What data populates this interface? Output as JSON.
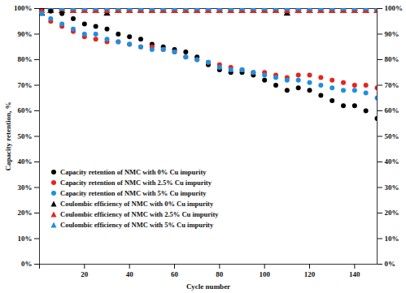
{
  "chart_data": {
    "type": "scatter",
    "x_label": "Cycle number",
    "y_label": "Capacity retention, %",
    "xlim": [
      0,
      150
    ],
    "xticks": [
      0,
      20,
      40,
      60,
      80,
      100,
      120,
      140
    ],
    "ylim": [
      0,
      100
    ],
    "yticks": [
      {
        "value": 0,
        "label": "0%"
      },
      {
        "value": 10,
        "label": "10%"
      },
      {
        "value": 20,
        "label": "20%"
      },
      {
        "value": 30,
        "label": "30%"
      },
      {
        "value": 40,
        "label": "40%"
      },
      {
        "value": 50,
        "label": "50%"
      },
      {
        "value": 60,
        "label": "60%"
      },
      {
        "value": 70,
        "label": "70%"
      },
      {
        "value": 80,
        "label": "80%"
      },
      {
        "value": 90,
        "label": "90%"
      },
      {
        "value": 100,
        "label": "100%"
      }
    ],
    "y2lim": [
      0,
      100
    ],
    "y2ticks": [
      {
        "value": 0,
        "label": "0%"
      },
      {
        "value": 10,
        "label": "10%"
      },
      {
        "value": 20,
        "label": "20%"
      },
      {
        "value": 30,
        "label": "30%"
      },
      {
        "value": 40,
        "label": "40%"
      },
      {
        "value": 50,
        "label": "50%"
      },
      {
        "value": 60,
        "label": "60%"
      },
      {
        "value": 70,
        "label": "70%"
      },
      {
        "value": 80,
        "label": "80%"
      },
      {
        "value": 90,
        "label": "90%"
      },
      {
        "value": 100,
        "label": "100%"
      }
    ],
    "grid": false,
    "legend": "lower left",
    "x": [
      1,
      5,
      10,
      15,
      20,
      25,
      30,
      35,
      40,
      45,
      50,
      55,
      60,
      65,
      70,
      75,
      80,
      85,
      90,
      95,
      100,
      105,
      110,
      115,
      120,
      125,
      130,
      135,
      140,
      145,
      150
    ],
    "series": [
      {
        "name": "Capacity retention of NMC with 0% Cu impurity",
        "color": "#000000",
        "marker": "circle",
        "values": [
          100,
          99,
          98,
          96,
          94,
          93,
          92,
          90,
          89,
          88,
          86,
          85,
          84,
          83,
          81,
          78,
          76,
          75,
          75,
          74,
          72,
          70,
          68,
          69,
          68,
          66,
          64,
          62,
          62,
          60,
          57
        ]
      },
      {
        "name": "Capacity retention of NMC with 2.5% Cu impurity",
        "color": "#e8231b",
        "marker": "circle",
        "values": [
          99,
          95,
          93,
          91,
          89,
          88,
          87,
          87,
          86,
          85,
          85,
          84,
          83,
          81,
          80,
          79,
          78,
          77,
          76,
          75,
          75,
          74,
          73,
          74,
          74,
          73,
          72,
          71,
          70,
          70,
          69
        ]
      },
      {
        "name": "Capacity retention of NMC with 5% Cu impurity",
        "color": "#1f8fe0",
        "marker": "circle",
        "values": [
          98,
          96,
          94,
          92,
          90,
          90,
          88,
          87,
          86,
          85,
          84,
          84,
          83,
          81,
          80,
          79,
          77,
          76,
          76,
          75,
          74,
          73,
          72,
          72,
          71,
          70,
          69,
          68,
          68,
          67,
          65
        ]
      },
      {
        "name": "Coulombic efficiency of NMC with 0% Cu impurity",
        "color": "#000000",
        "marker": "triangle",
        "axis": "y2",
        "values": [
          98,
          99,
          99,
          99,
          99,
          99,
          98,
          99,
          99,
          99,
          99,
          99,
          99,
          99,
          99,
          99,
          99,
          99,
          99,
          99,
          99,
          99,
          98,
          99,
          99,
          99,
          99,
          99,
          99,
          99,
          99
        ]
      },
      {
        "name": "Coulombic efficiency of NMC with 2.5% Cu impurity",
        "color": "#e8231b",
        "marker": "triangle",
        "axis": "y2",
        "values": [
          99,
          99,
          99,
          99,
          99,
          99,
          99,
          99,
          99,
          99,
          99,
          99,
          99,
          99,
          99,
          99,
          99,
          99,
          99,
          99,
          99,
          99,
          99,
          99,
          99,
          99,
          99,
          99,
          99,
          99,
          99
        ]
      },
      {
        "name": "Coulombic efficiency of NMC with 5% Cu impurity",
        "color": "#1f8fe0",
        "marker": "triangle",
        "axis": "y2",
        "values": [
          100,
          100,
          100,
          100,
          100,
          100,
          100,
          100,
          100,
          100,
          100,
          100,
          100,
          100,
          100,
          100,
          100,
          100,
          100,
          100,
          100,
          100,
          100,
          100,
          100,
          100,
          100,
          100,
          100,
          100,
          100
        ]
      }
    ]
  }
}
